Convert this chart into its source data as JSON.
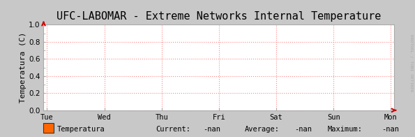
{
  "title": "UFC-LABOMAR - Extreme Networks Internal Temperature",
  "ylabel": "Temperatura (C)",
  "background_color": "#c8c8c8",
  "plot_bg_color": "#ffffff",
  "grid_color": "#ff8888",
  "grid_linestyle": ":",
  "axis_color": "#555555",
  "title_fontsize": 11,
  "tick_fontsize": 7.5,
  "label_fontsize": 8,
  "ylim": [
    0.0,
    1.0
  ],
  "yticks": [
    0.0,
    0.2,
    0.4,
    0.6,
    0.8,
    1.0
  ],
  "xtick_labels": [
    "Tue",
    "Wed",
    "Thu",
    "Fri",
    "Sat",
    "Sun",
    "Mon"
  ],
  "legend_label": "Temperatura",
  "legend_color": "#ff6600",
  "current_val": "-nan",
  "average_val": "-nan",
  "maximum_val": "-nan",
  "right_label": "RRDTOOL / TOBI OETIKER",
  "arrow_color": "#cc0000",
  "spine_color": "#aaaaaa"
}
